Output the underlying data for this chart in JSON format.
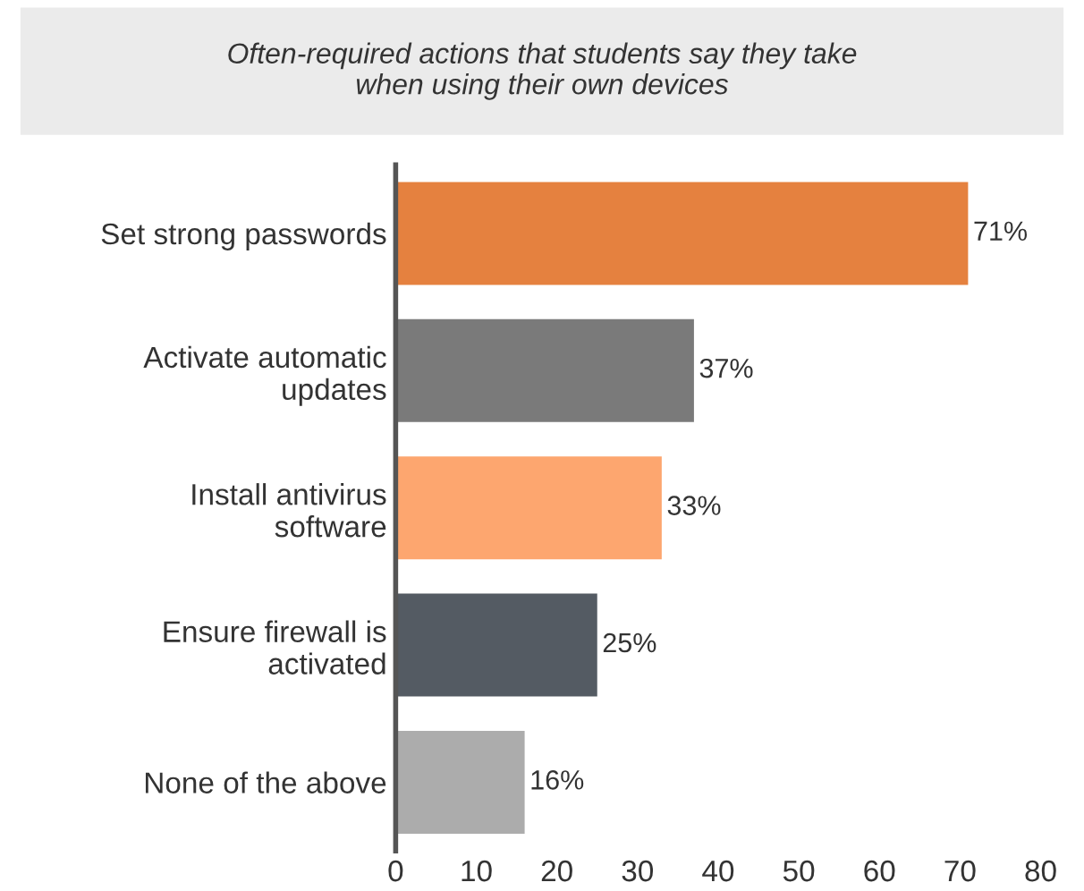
{
  "chart_data": {
    "type": "bar",
    "orientation": "horizontal",
    "title": "Often-required actions that students say they take\nwhen using their own devices",
    "categories": [
      "Set strong passwords",
      "Activate automatic\nupdates",
      "Install antivirus\nsoftware",
      "Ensure firewall is\nactivated",
      "None of the above"
    ],
    "values": [
      71,
      37,
      33,
      25,
      16
    ],
    "colors": [
      "#e5813f",
      "#7a7a7a",
      "#fda66f",
      "#545b63",
      "#acacac"
    ],
    "value_labels": [
      "71%",
      "37%",
      "33%",
      "25%",
      "16%"
    ],
    "xlim": [
      0,
      80
    ],
    "xticks": [
      0,
      10,
      20,
      30,
      40,
      50,
      60,
      70,
      80
    ],
    "grid": false,
    "legend": false
  }
}
